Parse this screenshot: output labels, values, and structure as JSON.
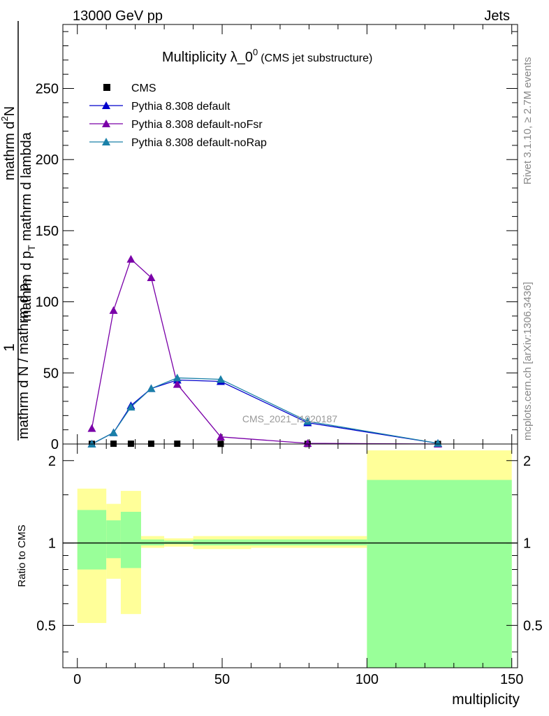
{
  "header": {
    "left": "13000 GeV pp",
    "right": "Jets"
  },
  "title": {
    "main": "Multiplicity λ_0",
    "sup": "0",
    "sub": "(CMS jet substructure)"
  },
  "side_labels": {
    "rivet": "Rivet 3.1.10, ≥ 2.7M events",
    "mcplots": "mcplots.cern.ch [arXiv:1306.3436]"
  },
  "watermark": "CMS_2021_I1920187",
  "chart_data": [
    {
      "type": "line",
      "panel": "main",
      "ylabel": {
        "prefix": "1",
        "denominator": "mathrm d N / mathrm d p",
        "denominator_sub": "T",
        "numerator": "mathrm d",
        "numerator_sup": "2",
        "numerator_rest": "N",
        "denominator2": "mathrm d p",
        "denominator2_sub": "T",
        "denominator2_rest": " mathrm d lambda"
      },
      "xlim": [
        -5,
        152
      ],
      "ylim": [
        0,
        295
      ],
      "yticks": [
        0,
        50,
        100,
        150,
        200,
        250
      ],
      "ytick_labels": [
        "0",
        "50",
        "100",
        "150",
        "200",
        "250"
      ],
      "legend_position": "top-left",
      "series": [
        {
          "name": "CMS",
          "color": "#000000",
          "marker": "square",
          "x": [
            5,
            12.5,
            18.5,
            25.5,
            34.5,
            49.5,
            79.5,
            124.5
          ],
          "y": [
            0.1,
            0.2,
            0.2,
            0.2,
            0.2,
            0.1,
            0.05,
            0.01
          ]
        },
        {
          "name": "Pythia 8.308 default",
          "color": "#0000cc",
          "marker": "triangle",
          "x": [
            5,
            12.5,
            18.5,
            25.5,
            34.5,
            49.5,
            79.5,
            124.5
          ],
          "y": [
            0,
            8,
            27,
            39,
            45,
            44,
            15,
            0.5
          ]
        },
        {
          "name": "Pythia 8.308 default-noFsr",
          "color": "#7a00a8",
          "marker": "triangle",
          "x": [
            5,
            12.5,
            18.5,
            25.5,
            34.5,
            49.5,
            79.5,
            124.5
          ],
          "y": [
            11,
            94,
            130,
            117,
            42,
            5,
            0.5,
            0
          ]
        },
        {
          "name": "Pythia 8.308 default-noRap",
          "color": "#1a80a8",
          "marker": "triangle",
          "x": [
            5,
            12.5,
            18.5,
            25.5,
            34.5,
            49.5,
            79.5,
            124.5
          ],
          "y": [
            0,
            8,
            26,
            39,
            46.5,
            45.5,
            16,
            0.5
          ]
        }
      ]
    },
    {
      "type": "area",
      "panel": "ratio",
      "ylabel": "Ratio to CMS",
      "xlabel": "multiplicity",
      "xlim": [
        -5,
        152
      ],
      "ylim": [
        0.35,
        2.3
      ],
      "yticks": [
        0.5,
        1,
        2
      ],
      "ytick_labels": [
        "0.5",
        "1",
        "2"
      ],
      "xticks": [
        0,
        50,
        100,
        150
      ],
      "xtick_labels": [
        "0",
        "50",
        "100",
        "150"
      ],
      "reference_line": 1,
      "bins": [
        {
          "x0": 0,
          "x1": 10,
          "stat_lo": 0.8,
          "stat_hi": 1.32,
          "tot_lo": 0.51,
          "tot_hi": 1.58
        },
        {
          "x0": 10,
          "x1": 15,
          "stat_lo": 0.88,
          "stat_hi": 1.21,
          "tot_lo": 0.74,
          "tot_hi": 1.39
        },
        {
          "x0": 15,
          "x1": 22,
          "stat_lo": 0.81,
          "stat_hi": 1.3,
          "tot_lo": 0.55,
          "tot_hi": 1.55
        },
        {
          "x0": 22,
          "x1": 30,
          "stat_lo": 0.98,
          "stat_hi": 1.03,
          "tot_lo": 0.96,
          "tot_hi": 1.06
        },
        {
          "x0": 30,
          "x1": 40,
          "stat_lo": 0.99,
          "stat_hi": 1.02,
          "tot_lo": 0.97,
          "tot_hi": 1.04
        },
        {
          "x0": 40,
          "x1": 60,
          "stat_lo": 0.98,
          "stat_hi": 1.03,
          "tot_lo": 0.95,
          "tot_hi": 1.06
        },
        {
          "x0": 60,
          "x1": 100,
          "stat_lo": 0.98,
          "stat_hi": 1.03,
          "tot_lo": 0.96,
          "tot_hi": 1.06
        },
        {
          "x0": 100,
          "x1": 150,
          "stat_lo": 0.35,
          "stat_hi": 1.7,
          "tot_lo": 0.35,
          "tot_hi": 2.18
        }
      ],
      "colors": {
        "stat": "#99ff99",
        "total": "#ffff99"
      }
    }
  ]
}
